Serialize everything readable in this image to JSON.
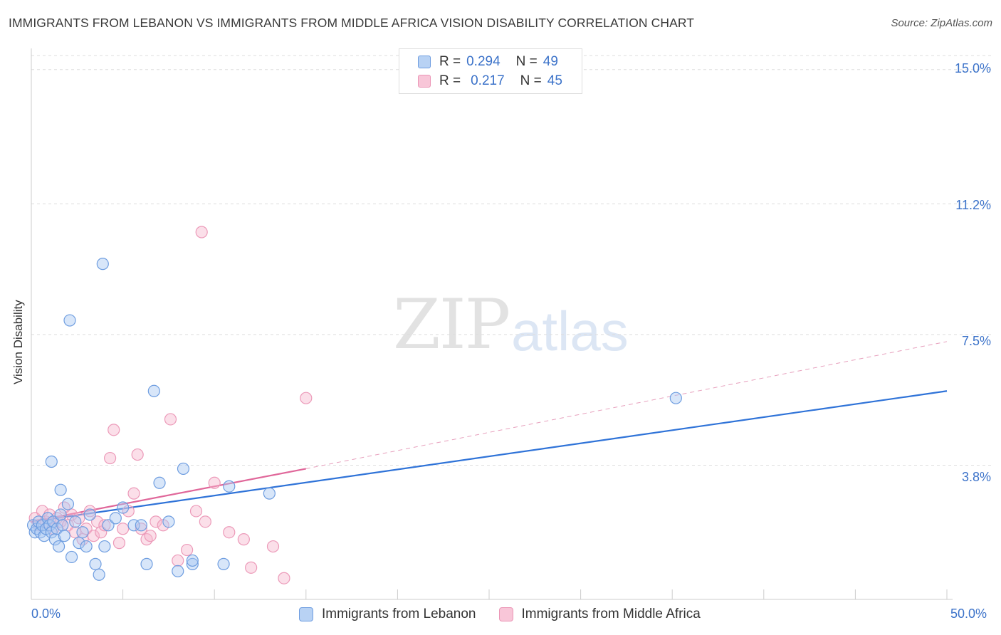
{
  "header": {
    "title": "IMMIGRANTS FROM LEBANON VS IMMIGRANTS FROM MIDDLE AFRICA VISION DISABILITY CORRELATION CHART",
    "source": "Source: ZipAtlas.com"
  },
  "watermark": {
    "zip": "ZIP",
    "atlas": "atlas"
  },
  "legend_top": {
    "rows": [
      {
        "r_label": "R =",
        "r_value": "0.294",
        "n_label": "N =",
        "n_value": "49"
      },
      {
        "r_label": "R =",
        "r_value": "0.217",
        "n_label": "N =",
        "n_value": "45"
      }
    ]
  },
  "legend_bottom": {
    "series1": "Immigrants from Lebanon",
    "series2": "Immigrants from Middle Africa"
  },
  "axes": {
    "ylabel": "Vision Disability",
    "y_ticks": [
      "15.0%",
      "11.2%",
      "7.5%",
      "3.8%"
    ],
    "x_min_label": "0.0%",
    "x_max_label": "50.0%"
  },
  "colors": {
    "blue": "#3a78d6",
    "blue_fill": "#a9c8f2",
    "pink": "#e0679a",
    "pink_fill": "#f6b9cf",
    "tick_text": "#3b72c9"
  },
  "chart_data": {
    "type": "scatter",
    "title": "IMMIGRANTS FROM LEBANON VS IMMIGRANTS FROM MIDDLE AFRICA VISION DISABILITY CORRELATION CHART",
    "xlabel": "",
    "ylabel": "Vision Disability",
    "xlim": [
      0,
      50
    ],
    "ylim": [
      0,
      15.6
    ],
    "y_gridlines": [
      3.8,
      7.5,
      11.2,
      15.0
    ],
    "series": [
      {
        "name": "Immigrants from Lebanon",
        "R": 0.294,
        "N": 49,
        "trend": {
          "x0": 0,
          "y0": 2.2,
          "x1": 50,
          "y1": 5.9,
          "dashed_extension": false
        },
        "points": [
          [
            0.1,
            2.1
          ],
          [
            0.2,
            1.9
          ],
          [
            0.3,
            2.0
          ],
          [
            0.4,
            2.2
          ],
          [
            0.5,
            1.9
          ],
          [
            0.6,
            2.1
          ],
          [
            0.7,
            1.8
          ],
          [
            0.8,
            2.0
          ],
          [
            0.9,
            2.3
          ],
          [
            1.0,
            2.1
          ],
          [
            1.1,
            1.9
          ],
          [
            1.2,
            2.2
          ],
          [
            1.3,
            1.7
          ],
          [
            1.4,
            2.0
          ],
          [
            1.5,
            1.5
          ],
          [
            1.6,
            2.4
          ],
          [
            1.7,
            2.1
          ],
          [
            1.8,
            1.8
          ],
          [
            2.0,
            2.7
          ],
          [
            2.2,
            1.2
          ],
          [
            2.4,
            2.2
          ],
          [
            2.6,
            1.6
          ],
          [
            2.8,
            1.9
          ],
          [
            3.0,
            1.5
          ],
          [
            3.2,
            2.4
          ],
          [
            3.5,
            1.0
          ],
          [
            3.7,
            0.7
          ],
          [
            4.0,
            1.5
          ],
          [
            4.2,
            2.1
          ],
          [
            4.6,
            2.3
          ],
          [
            5.0,
            2.6
          ],
          [
            5.6,
            2.1
          ],
          [
            6.0,
            2.1
          ],
          [
            6.3,
            1.0
          ],
          [
            6.7,
            5.9
          ],
          [
            7.0,
            3.3
          ],
          [
            7.5,
            2.2
          ],
          [
            8.0,
            0.8
          ],
          [
            8.3,
            3.7
          ],
          [
            8.8,
            1.0
          ],
          [
            1.1,
            3.9
          ],
          [
            1.6,
            3.1
          ],
          [
            2.1,
            7.9
          ],
          [
            3.9,
            9.5
          ],
          [
            8.8,
            1.1
          ],
          [
            10.5,
            1.0
          ],
          [
            10.8,
            3.2
          ],
          [
            13.0,
            3.0
          ],
          [
            35.2,
            5.7
          ]
        ]
      },
      {
        "name": "Immigrants from Middle Africa",
        "R": 0.217,
        "N": 45,
        "trend": {
          "x0": 0,
          "y0": 2.2,
          "x1": 15,
          "y1": 3.7,
          "dash_x1": 50,
          "dash_y1": 7.3
        },
        "points": [
          [
            0.2,
            2.3
          ],
          [
            0.4,
            2.1
          ],
          [
            0.6,
            2.5
          ],
          [
            0.8,
            2.2
          ],
          [
            1.0,
            2.4
          ],
          [
            1.2,
            2.0
          ],
          [
            1.4,
            2.3
          ],
          [
            1.6,
            2.2
          ],
          [
            1.8,
            2.6
          ],
          [
            2.0,
            2.1
          ],
          [
            2.2,
            2.4
          ],
          [
            2.4,
            1.9
          ],
          [
            2.6,
            2.3
          ],
          [
            2.8,
            1.7
          ],
          [
            3.0,
            2.0
          ],
          [
            3.2,
            2.5
          ],
          [
            3.4,
            1.8
          ],
          [
            3.6,
            2.2
          ],
          [
            3.8,
            1.9
          ],
          [
            4.0,
            2.1
          ],
          [
            4.3,
            4.0
          ],
          [
            4.5,
            4.8
          ],
          [
            4.8,
            1.6
          ],
          [
            5.0,
            2.0
          ],
          [
            5.3,
            2.5
          ],
          [
            5.6,
            3.0
          ],
          [
            5.8,
            4.1
          ],
          [
            6.0,
            2.0
          ],
          [
            6.3,
            1.7
          ],
          [
            6.5,
            1.8
          ],
          [
            6.8,
            2.2
          ],
          [
            7.2,
            2.1
          ],
          [
            7.6,
            5.1
          ],
          [
            8.0,
            1.1
          ],
          [
            8.5,
            1.4
          ],
          [
            9.0,
            2.5
          ],
          [
            9.5,
            2.2
          ],
          [
            10.0,
            3.3
          ],
          [
            10.8,
            1.9
          ],
          [
            11.6,
            1.7
          ],
          [
            12.0,
            0.9
          ],
          [
            13.2,
            1.5
          ],
          [
            13.8,
            0.6
          ],
          [
            15.0,
            5.7
          ],
          [
            9.3,
            10.4
          ]
        ]
      }
    ]
  }
}
